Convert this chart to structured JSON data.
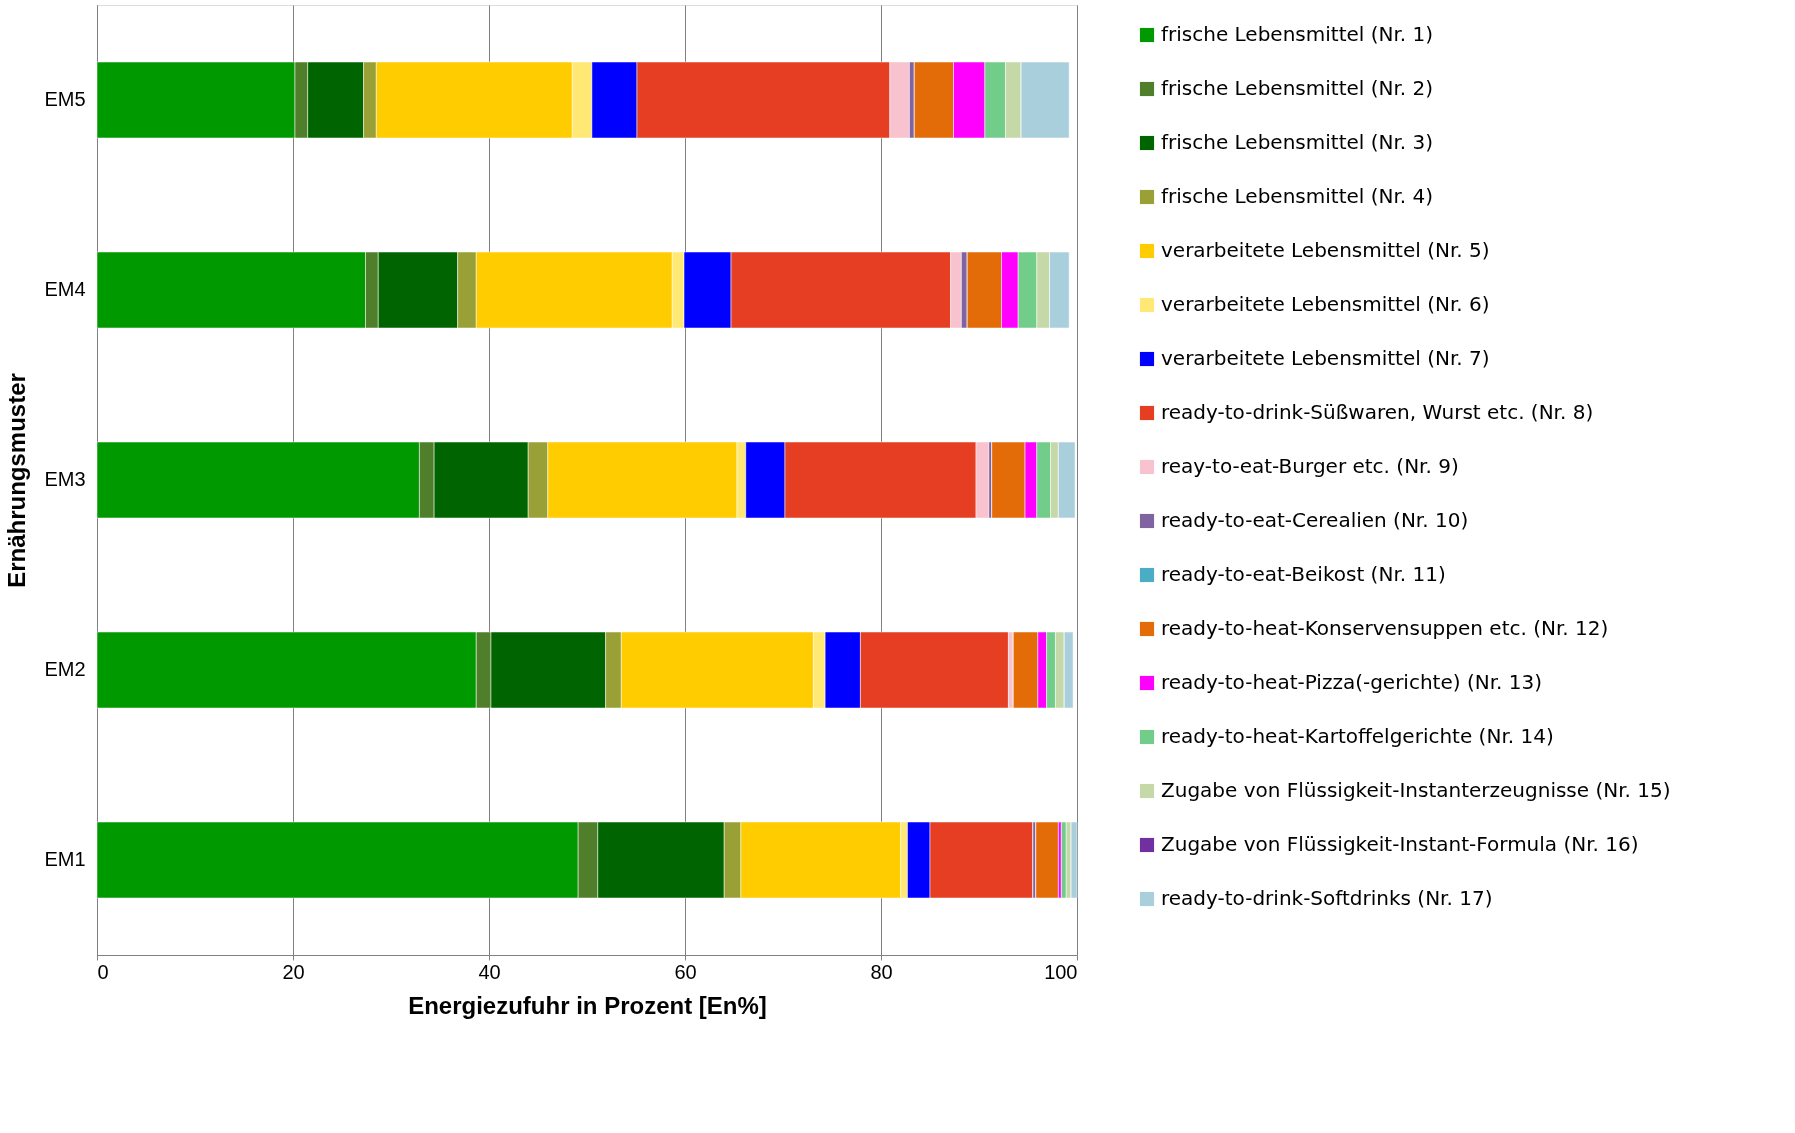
{
  "chart_data": {
    "type": "bar",
    "orientation": "horizontal",
    "stacked": true,
    "xlabel": "Energiezufuhr in Prozent [En%]",
    "ylabel": "Ernährungsmuster",
    "categories": [
      "EM5",
      "EM4",
      "EM3",
      "EM2",
      "EM1"
    ],
    "xlim": [
      0,
      100
    ],
    "xticks": [
      0,
      20,
      40,
      60,
      80,
      100
    ],
    "grid": "x",
    "legend": "right",
    "series": [
      {
        "name": "frische Lebensmittel (Nr. 1)",
        "color": "#009900",
        "values": [
          20.2,
          27.4,
          32.9,
          38.7,
          49.1
        ]
      },
      {
        "name": "frische Lebensmittel (Nr. 2)",
        "color": "#4f7f2b",
        "values": [
          1.3,
          1.3,
          1.5,
          1.5,
          2.0
        ]
      },
      {
        "name": "frische Lebensmittel (Nr. 3)",
        "color": "#006400",
        "values": [
          5.7,
          8.1,
          9.6,
          11.7,
          12.9
        ]
      },
      {
        "name": "frische Lebensmittel (Nr. 4)",
        "color": "#99a136",
        "values": [
          1.3,
          1.9,
          2.0,
          1.6,
          1.7
        ]
      },
      {
        "name": "verarbeitete Lebensmittel (Nr. 5)",
        "color": "#ffcc00",
        "values": [
          20.0,
          20.0,
          19.3,
          19.6,
          16.3
        ]
      },
      {
        "name": "verarbeitete Lebensmittel (Nr. 6)",
        "color": "#ffe874",
        "values": [
          2.0,
          1.2,
          0.9,
          1.2,
          0.7
        ]
      },
      {
        "name": "verarbeitete Lebensmittel (Nr. 7)",
        "color": "#0000ff",
        "values": [
          4.6,
          4.8,
          4.0,
          3.6,
          2.3
        ]
      },
      {
        "name": "ready-to-drink-Süßwaren, Wurst etc. (Nr. 8)",
        "color": "#e53e23",
        "values": [
          25.8,
          22.4,
          19.5,
          15.1,
          10.5
        ]
      },
      {
        "name": "reay-to-eat-Burger etc. (Nr. 9)",
        "color": "#f8c2cf",
        "values": [
          2.0,
          1.1,
          1.3,
          0.5,
          0.0
        ]
      },
      {
        "name": "ready-to-eat-Cerealien (Nr. 10)",
        "color": "#8064a2",
        "values": [
          0.5,
          0.6,
          0.3,
          0.0,
          0.3
        ]
      },
      {
        "name": "ready-to-eat-Beikost (Nr. 11)",
        "color": "#4bacc6",
        "values": [
          0,
          0,
          0,
          0,
          0
        ]
      },
      {
        "name": "ready-to-heat-Konservensuppen etc. (Nr. 12)",
        "color": "#e36c09",
        "values": [
          4.0,
          3.5,
          3.4,
          2.5,
          2.3
        ]
      },
      {
        "name": "ready-to-heat-Pizza(-gerichte) (Nr. 13)",
        "color": "#ff00ff",
        "values": [
          3.2,
          1.7,
          1.2,
          0.9,
          0.3
        ]
      },
      {
        "name": "ready-to-heat-Kartoffelgerichte (Nr. 14)",
        "color": "#72cd8b",
        "values": [
          2.1,
          1.9,
          1.4,
          0.9,
          0.5
        ]
      },
      {
        "name": "Zugabe von Flüssigkeit-Instanterzeugnisse (Nr. 15)",
        "color": "#c5d9a8",
        "values": [
          1.6,
          1.3,
          0.8,
          0.9,
          0.5
        ]
      },
      {
        "name": "Zugabe von Flüssigkeit-Instant-Formula (Nr. 16)",
        "color": "#7030a0",
        "values": [
          0,
          0,
          0,
          0,
          0
        ]
      },
      {
        "name": "ready-to-drink-Softdrinks (Nr. 17)",
        "color": "#aacfdc",
        "values": [
          4.9,
          2.0,
          1.7,
          0.9,
          0.6
        ]
      }
    ]
  }
}
